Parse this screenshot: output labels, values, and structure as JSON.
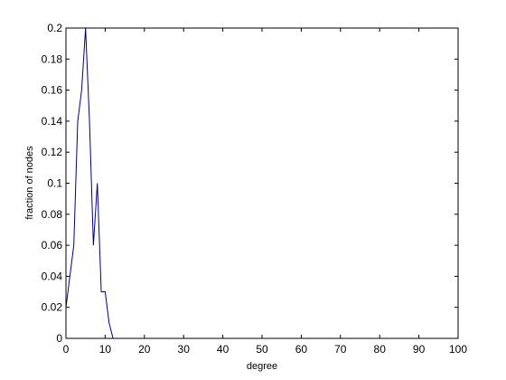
{
  "chart_data": {
    "type": "line",
    "title": "",
    "xlabel": "degree",
    "ylabel": "fraction of nodes",
    "xlim": [
      0,
      100
    ],
    "ylim": [
      0,
      0.2
    ],
    "xticks": [
      0,
      10,
      20,
      30,
      40,
      50,
      60,
      70,
      80,
      90,
      100
    ],
    "yticks": [
      0,
      0.02,
      0.04,
      0.06,
      0.08,
      0.1,
      0.12,
      0.14,
      0.16,
      0.18,
      0.2
    ],
    "xtick_labels": [
      "0",
      "10",
      "20",
      "30",
      "40",
      "50",
      "60",
      "70",
      "80",
      "90",
      "100"
    ],
    "ytick_labels": [
      "0",
      "0.02",
      "0.04",
      "0.06",
      "0.08",
      "0.1",
      "0.12",
      "0.14",
      "0.16",
      "0.18",
      "0.2"
    ],
    "grid": false,
    "series": [
      {
        "color": "#000080",
        "x": [
          0,
          1,
          2,
          3,
          4,
          5,
          6,
          7,
          8,
          9,
          10,
          11,
          12
        ],
        "y": [
          0.02,
          0.04,
          0.06,
          0.14,
          0.16,
          0.2,
          0.14,
          0.06,
          0.1,
          0.03,
          0.03,
          0.01,
          0
        ]
      }
    ]
  }
}
